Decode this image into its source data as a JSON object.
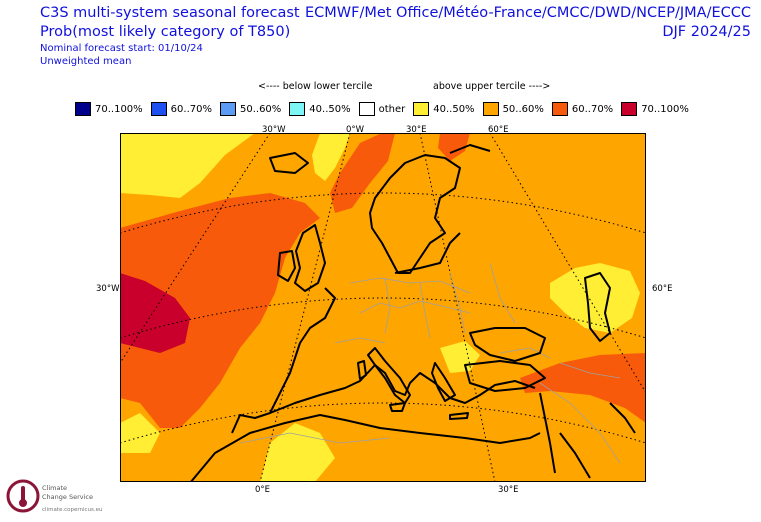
{
  "header": {
    "left_line1": "C3S multi-system seasonal forecast",
    "left_line2": "Prob(most likely category of T850)",
    "left_line3": "Nominal forecast start: 01/10/24",
    "left_line4": "Unweighted mean",
    "right_line1": "ECMWF/Met Office/Météo-France/CMCC/DWD/NCEP/JMA/ECCC",
    "right_line2": "DJF 2024/25"
  },
  "legend": {
    "below_hint": "<---- below lower tercile",
    "above_hint": "above upper tercile ---->",
    "items": [
      {
        "label": "70..100%",
        "color": "#00008b"
      },
      {
        "label": "60..70%",
        "color": "#1e4ff0"
      },
      {
        "label": "50..60%",
        "color": "#5b9af5"
      },
      {
        "label": "40..50%",
        "color": "#7ff6f6"
      },
      {
        "label": "other",
        "color": "#ffffff"
      },
      {
        "label": "40..50%",
        "color": "#ffee33"
      },
      {
        "label": "50..60%",
        "color": "#ffa500"
      },
      {
        "label": "60..70%",
        "color": "#f75a0a"
      },
      {
        "label": "70..100%",
        "color": "#c9002b"
      }
    ]
  },
  "axes": {
    "top_labels": [
      "30°W",
      "0°W",
      "30°E",
      "60°E"
    ],
    "left_label": "30°W",
    "right_label": "60°E",
    "bottom_labels": [
      "0°E",
      "30°E"
    ]
  },
  "colors": {
    "background_category": "#ffa500",
    "coastline": "#000000",
    "borders": "#a0a0a0",
    "graticule": "#000000"
  },
  "logo": {
    "line1": "Climate",
    "line2": "Change Service",
    "url": "climate.copernicus.eu",
    "icon": "copernicus-thermometer-icon"
  }
}
